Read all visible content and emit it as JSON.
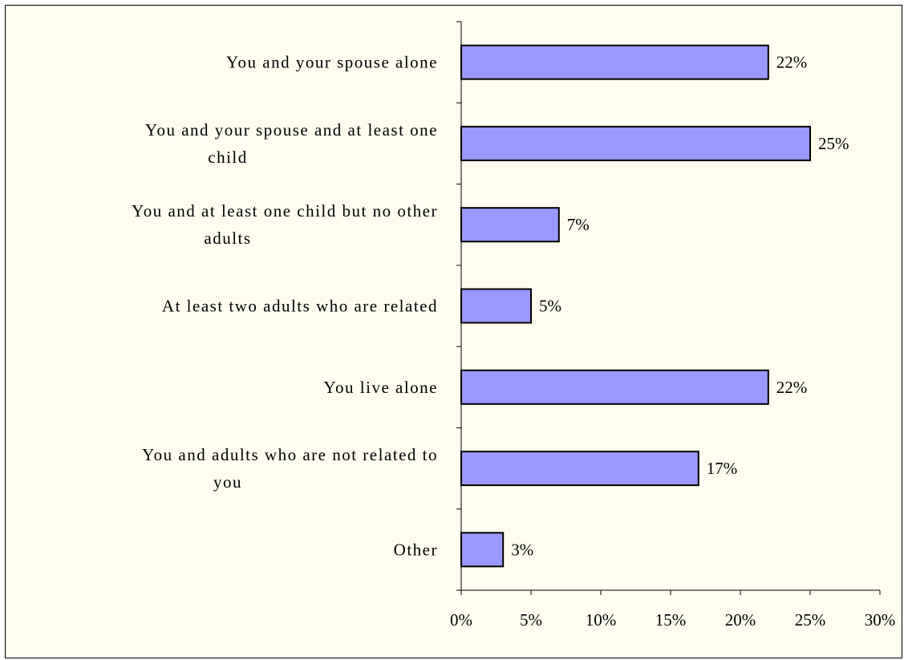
{
  "chart_data": {
    "type": "bar",
    "orientation": "horizontal",
    "categories": [
      "You and your spouse alone",
      "You and your spouse and at least one child",
      "You and at least one child but no other adults",
      "At least two adults who are related",
      "You live alone",
      "You and adults who are not related to you",
      "Other"
    ],
    "category_lines": [
      [
        "You and your spouse alone"
      ],
      [
        "You and your spouse and at least one",
        "child"
      ],
      [
        "You and at least one child but no other",
        "adults"
      ],
      [
        "At least two adults who are related"
      ],
      [
        "You live alone"
      ],
      [
        "You and adults who are not related to",
        "you"
      ],
      [
        "Other"
      ]
    ],
    "values": [
      22,
      25,
      7,
      5,
      22,
      17,
      3
    ],
    "data_labels": [
      "22%",
      "25%",
      "7%",
      "5%",
      "22%",
      "17%",
      "3%"
    ],
    "xlim": [
      0,
      30
    ],
    "x_ticks": [
      0,
      5,
      10,
      15,
      20,
      25,
      30
    ],
    "x_tick_labels": [
      "0%",
      "5%",
      "10%",
      "15%",
      "20%",
      "25%",
      "30%"
    ],
    "title": "",
    "xlabel": "",
    "ylabel": "",
    "grid": false,
    "legend": "none",
    "colors": {
      "bar_fill": "#9999ff",
      "bar_stroke": "#000000",
      "background": "#fffdf0"
    }
  }
}
